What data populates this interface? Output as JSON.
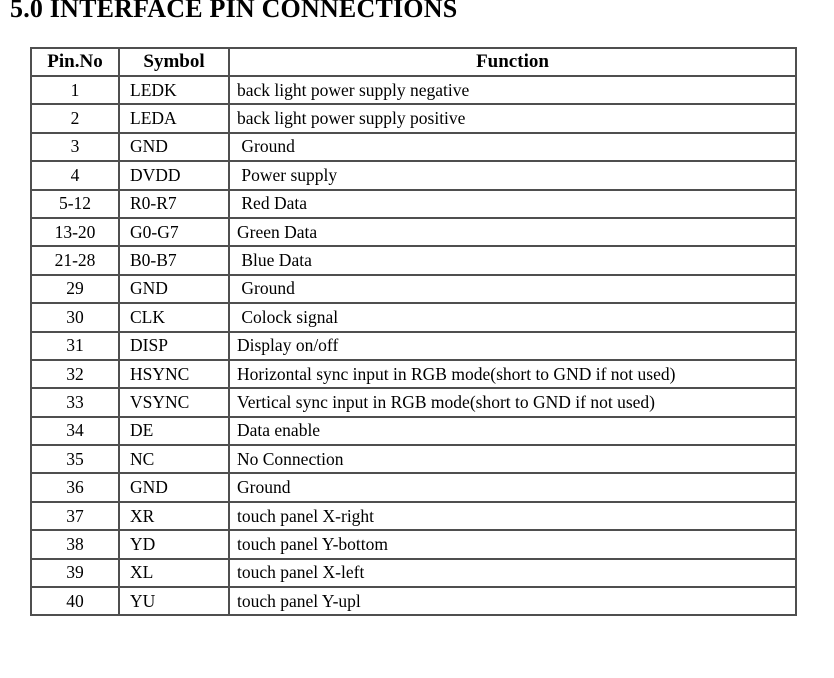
{
  "title": "5.0 INTERFACE PIN CONNECTIONS",
  "table": {
    "headers": [
      "Pin.No",
      "Symbol",
      "Function"
    ],
    "rows": [
      {
        "pin": "1",
        "symbol": "LEDK",
        "function": "back light power supply negative"
      },
      {
        "pin": "2",
        "symbol": "LEDA",
        "function": "back light power supply positive"
      },
      {
        "pin": "3",
        "symbol": "GND",
        "function": " Ground"
      },
      {
        "pin": "4",
        "symbol": "DVDD",
        "function": " Power supply"
      },
      {
        "pin": "5-12",
        "symbol": "R0-R7",
        "function": " Red Data"
      },
      {
        "pin": "13-20",
        "symbol": "G0-G7",
        "function": "Green Data"
      },
      {
        "pin": "21-28",
        "symbol": "B0-B7",
        "function": " Blue Data"
      },
      {
        "pin": "29",
        "symbol": "GND",
        "function": " Ground"
      },
      {
        "pin": "30",
        "symbol": "CLK",
        "function": " Colock signal"
      },
      {
        "pin": "31",
        "symbol": "DISP",
        "function": "Display on/off"
      },
      {
        "pin": "32",
        "symbol": "HSYNC",
        "function": "Horizontal sync input in RGB mode(short to GND if not used)"
      },
      {
        "pin": "33",
        "symbol": "VSYNC",
        "function": "Vertical sync input in RGB mode(short to GND if not used)"
      },
      {
        "pin": "34",
        "symbol": "DE",
        "function": "Data enable"
      },
      {
        "pin": "35",
        "symbol": "NC",
        "function": "No Connection"
      },
      {
        "pin": "36",
        "symbol": "GND",
        "function": "Ground"
      },
      {
        "pin": "37",
        "symbol": "XR",
        "function": "touch panel X-right"
      },
      {
        "pin": "38",
        "symbol": "YD",
        "function": "touch panel Y-bottom"
      },
      {
        "pin": "39",
        "symbol": "XL",
        "function": "touch panel X-left"
      },
      {
        "pin": "40",
        "symbol": "YU",
        "function": "touch panel Y-upl"
      }
    ]
  },
  "colors": {
    "text": "#000000",
    "border": "#4f4f4f",
    "background": "#ffffff"
  }
}
